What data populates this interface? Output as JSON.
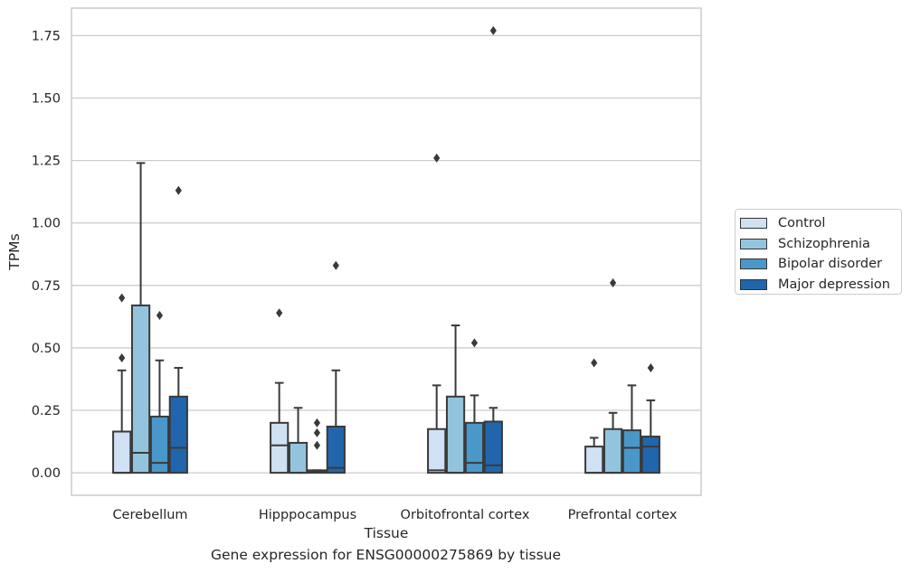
{
  "caption": "Gene expression for ENSG00000275869 by tissue",
  "chart_data": {
    "type": "box",
    "xlabel": "Tissue",
    "ylabel": "TPMs",
    "categories": [
      "Cerebellum",
      "Hipppocampus",
      "Orbitofrontal cortex",
      "Prefrontal cortex"
    ],
    "ylim": [
      -0.09,
      1.86
    ],
    "yticks": [
      "0.00",
      "0.25",
      "0.50",
      "0.75",
      "1.00",
      "1.25",
      "1.50",
      "1.75"
    ],
    "grid": true,
    "legend_position": "right",
    "series": [
      {
        "name": "Control",
        "color": "#cfe1f2",
        "boxes": [
          {
            "q1": 0.0,
            "median": 0.0,
            "q3": 0.165,
            "whisker_low": 0.0,
            "whisker_high": 0.41,
            "outliers": [
              0.46,
              0.7
            ]
          },
          {
            "q1": 0.0,
            "median": 0.11,
            "q3": 0.2,
            "whisker_low": 0.0,
            "whisker_high": 0.36,
            "outliers": [
              0.64
            ]
          },
          {
            "q1": 0.0,
            "median": 0.01,
            "q3": 0.175,
            "whisker_low": 0.0,
            "whisker_high": 0.35,
            "outliers": [
              1.26
            ]
          },
          {
            "q1": 0.0,
            "median": 0.0,
            "q3": 0.105,
            "whisker_low": 0.0,
            "whisker_high": 0.14,
            "outliers": [
              0.44
            ]
          }
        ]
      },
      {
        "name": "Schizophrenia",
        "color": "#93c4de",
        "boxes": [
          {
            "q1": 0.0,
            "median": 0.08,
            "q3": 0.67,
            "whisker_low": 0.0,
            "whisker_high": 1.24,
            "outliers": []
          },
          {
            "q1": 0.0,
            "median": 0.0,
            "q3": 0.12,
            "whisker_low": 0.0,
            "whisker_high": 0.26,
            "outliers": []
          },
          {
            "q1": 0.0,
            "median": 0.0,
            "q3": 0.305,
            "whisker_low": 0.0,
            "whisker_high": 0.59,
            "outliers": []
          },
          {
            "q1": 0.0,
            "median": 0.0,
            "q3": 0.175,
            "whisker_low": 0.0,
            "whisker_high": 0.24,
            "outliers": [
              0.76
            ]
          }
        ]
      },
      {
        "name": "Bipolar disorder",
        "color": "#4a98c9",
        "boxes": [
          {
            "q1": 0.0,
            "median": 0.04,
            "q3": 0.225,
            "whisker_low": 0.0,
            "whisker_high": 0.45,
            "outliers": [
              0.63
            ]
          },
          {
            "q1": 0.0,
            "median": 0.005,
            "q3": 0.01,
            "whisker_low": 0.0,
            "whisker_high": 0.01,
            "outliers": [
              0.11,
              0.16,
              0.2
            ]
          },
          {
            "q1": 0.0,
            "median": 0.04,
            "q3": 0.2,
            "whisker_low": 0.0,
            "whisker_high": 0.31,
            "outliers": [
              0.52
            ]
          },
          {
            "q1": 0.0,
            "median": 0.1,
            "q3": 0.17,
            "whisker_low": 0.0,
            "whisker_high": 0.35,
            "outliers": []
          }
        ]
      },
      {
        "name": "Major depression",
        "color": "#2166ac",
        "boxes": [
          {
            "q1": 0.0,
            "median": 0.1,
            "q3": 0.305,
            "whisker_low": 0.0,
            "whisker_high": 0.42,
            "outliers": [
              1.13
            ]
          },
          {
            "q1": 0.0,
            "median": 0.02,
            "q3": 0.185,
            "whisker_low": 0.0,
            "whisker_high": 0.41,
            "outliers": [
              0.83
            ]
          },
          {
            "q1": 0.0,
            "median": 0.03,
            "q3": 0.205,
            "whisker_low": 0.0,
            "whisker_high": 0.26,
            "outliers": [
              1.77
            ]
          },
          {
            "q1": 0.0,
            "median": 0.105,
            "q3": 0.145,
            "whisker_low": 0.0,
            "whisker_high": 0.29,
            "outliers": [
              0.42
            ]
          }
        ]
      }
    ]
  }
}
